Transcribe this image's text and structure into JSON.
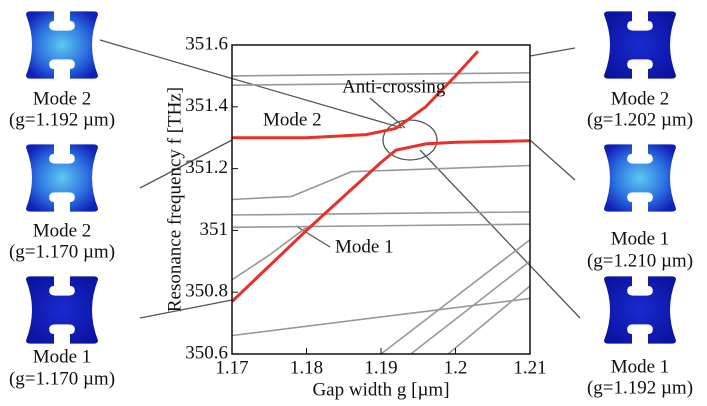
{
  "chart_data": {
    "type": "line",
    "x_label": "Gap width g [µm]",
    "y_label": "Resonance frequency f [THz]",
    "xlim": [
      1.17,
      1.21
    ],
    "ylim": [
      350.6,
      351.6
    ],
    "xticks": [
      1.17,
      1.18,
      1.19,
      1.2,
      1.21
    ],
    "yticks": [
      350.6,
      350.8,
      351,
      351.2,
      351.4,
      351.6
    ],
    "annotation": "Anti-crossing",
    "series": [
      {
        "name": "Mode 1",
        "color": "#e8302a",
        "x": [
          1.17,
          1.18,
          1.19,
          1.192,
          1.196,
          1.2,
          1.21
        ],
        "values": [
          350.77,
          351.0,
          351.22,
          351.26,
          351.28,
          351.285,
          351.29
        ]
      },
      {
        "name": "Mode 2",
        "color": "#e8302a",
        "x": [
          1.17,
          1.18,
          1.188,
          1.192,
          1.196,
          1.2,
          1.203
        ],
        "values": [
          351.3,
          351.3,
          351.31,
          351.33,
          351.4,
          351.5,
          351.58
        ]
      },
      {
        "color": "#999999",
        "x": [
          1.17,
          1.21
        ],
        "values": [
          351.5,
          351.51
        ]
      },
      {
        "color": "#999999",
        "x": [
          1.17,
          1.21
        ],
        "values": [
          351.47,
          351.48
        ]
      },
      {
        "color": "#999999",
        "x": [
          1.17,
          1.178,
          1.182,
          1.186,
          1.21
        ],
        "values": [
          351.1,
          351.11,
          351.15,
          351.19,
          351.21
        ]
      },
      {
        "color": "#999999",
        "x": [
          1.17,
          1.21
        ],
        "values": [
          351.05,
          351.06
        ]
      },
      {
        "color": "#999999",
        "x": [
          1.17,
          1.21
        ],
        "values": [
          351.01,
          351.02
        ]
      },
      {
        "color": "#999999",
        "x": [
          1.17,
          1.175,
          1.18
        ],
        "values": [
          350.84,
          350.92,
          351.01
        ]
      },
      {
        "color": "#999999",
        "x": [
          1.17,
          1.21
        ],
        "values": [
          350.66,
          350.78
        ]
      },
      {
        "color": "#999999",
        "x": [
          1.19,
          1.21
        ],
        "values": [
          350.6,
          350.97
        ]
      },
      {
        "color": "#999999",
        "x": [
          1.194,
          1.21
        ],
        "values": [
          350.6,
          350.9
        ]
      },
      {
        "color": "#999999",
        "x": [
          1.199,
          1.21
        ],
        "values": [
          350.6,
          350.82
        ]
      }
    ]
  },
  "panels": [
    {
      "title": "Mode 2",
      "caption": "(g=1.192 µm)"
    },
    {
      "title": "Mode 2",
      "caption": "(g=1.170 µm)"
    },
    {
      "title": "Mode 1",
      "caption": "(g=1.170 µm)"
    },
    {
      "title": "Mode 2",
      "caption": "(g=1.202 µm)"
    },
    {
      "title": "Mode 1",
      "caption": "(g=1.210 µm)"
    },
    {
      "title": "Mode 1",
      "caption": "(g=1.192 µm)"
    }
  ]
}
